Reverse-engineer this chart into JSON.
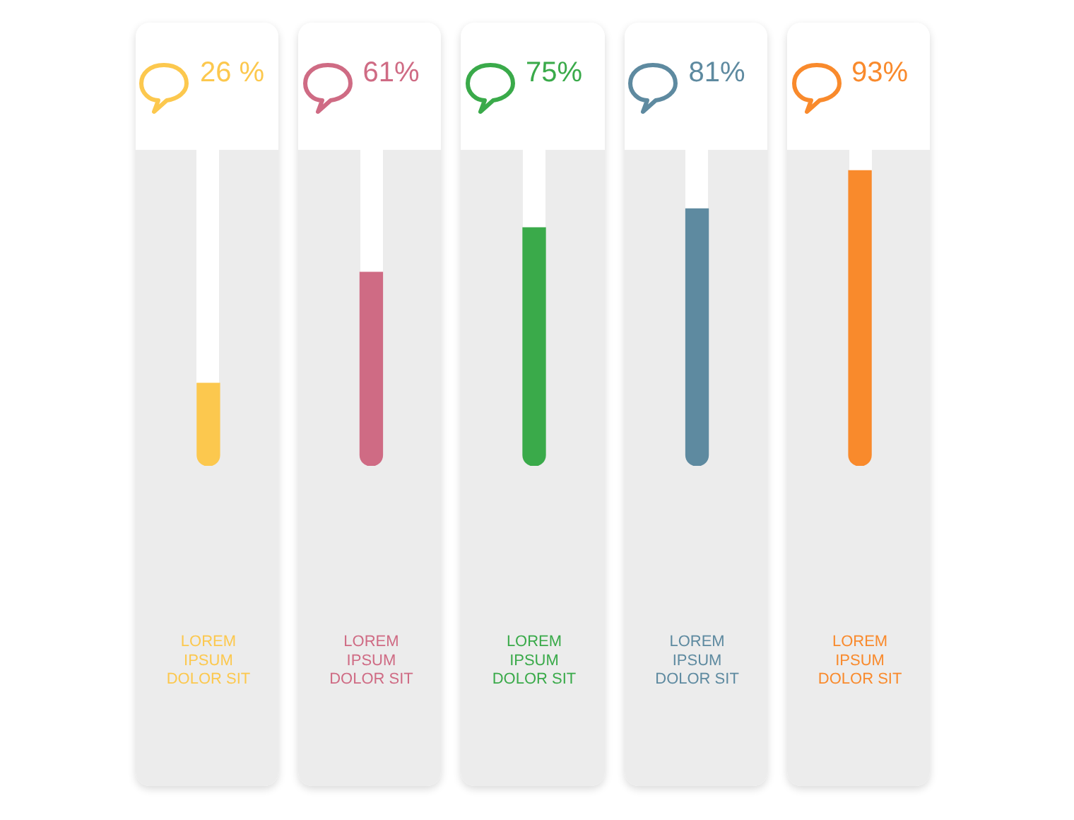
{
  "chart_data": {
    "type": "bar",
    "categories": [
      "LOREM\nIPSUM\nDOLOR SIT",
      "LOREM\nIPSUM\nDOLOR SIT",
      "LOREM\nIPSUM\nDOLOR SIT",
      "LOREM\nIPSUM\nDOLOR SIT",
      "LOREM\nIPSUM\nDOLOR SIT"
    ],
    "values": [
      26,
      61,
      75,
      81,
      93
    ],
    "colors": [
      "#fcc84e",
      "#cf6b84",
      "#3aaa4a",
      "#5e8aa0",
      "#f98a2c"
    ],
    "value_labels": [
      "26 %",
      "61%",
      "75%",
      "81%",
      "93%"
    ],
    "tick_labels": "x"
  }
}
